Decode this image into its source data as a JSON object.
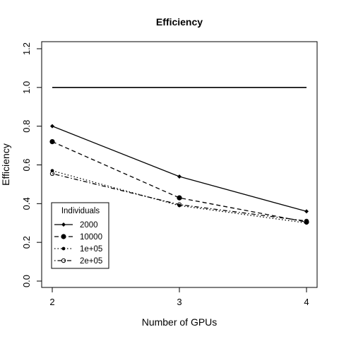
{
  "chart_data": {
    "type": "line",
    "title": "Efficiency",
    "xlabel": "Number of GPUs",
    "ylabel": "Efficiency",
    "x": [
      2,
      3,
      4
    ],
    "xlim": [
      2,
      4
    ],
    "ylim": [
      0,
      1.2
    ],
    "xticks": [
      "2",
      "3",
      "4"
    ],
    "yticks": [
      "0.0",
      "0.2",
      "0.4",
      "0.6",
      "0.8",
      "1.0",
      "1.2"
    ],
    "reference_line": {
      "y": 1.0
    },
    "legend": {
      "title": "Individuals",
      "position": "bottom-left"
    },
    "series": [
      {
        "name": "2000",
        "values": [
          0.8,
          0.54,
          0.36
        ],
        "linestyle": "solid",
        "marker": "diamond"
      },
      {
        "name": "10000",
        "values": [
          0.72,
          0.43,
          0.305
        ],
        "linestyle": "dashed",
        "marker": "large-dot"
      },
      {
        "name": "1e+05",
        "values": [
          0.57,
          0.39,
          0.3
        ],
        "linestyle": "dotted",
        "marker": "small-dot"
      },
      {
        "name": "2e+05",
        "values": [
          0.555,
          0.395,
          0.31
        ],
        "linestyle": "dotdash",
        "marker": "open-circle"
      }
    ]
  }
}
